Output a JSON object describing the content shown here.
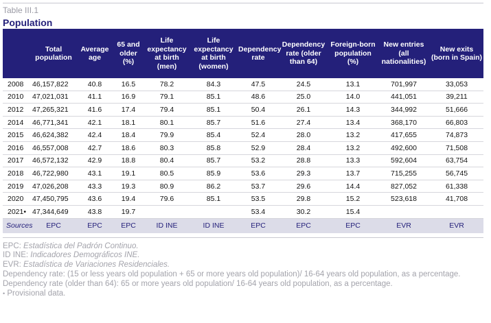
{
  "table": {
    "label": "Table III.1",
    "title": "Population",
    "headers": [
      "",
      "Total population",
      "Average age",
      "65 and older (%)",
      "Life expectancy at birth (men)",
      "Life expectancy at birth (women)",
      "Dependency rate",
      "Dependency rate (older than 64)",
      "Foreign-born population (%)",
      "New entries (all nationalities)",
      "New exits (born in Spain)"
    ],
    "rows": [
      [
        "2008",
        "46,157,822",
        "40.8",
        "16.5",
        "78.2",
        "84.3",
        "47.5",
        "24.5",
        "13.1",
        "701,997",
        "33,053"
      ],
      [
        "2010",
        "47,021,031",
        "41.1",
        "16.9",
        "79.1",
        "85.1",
        "48.6",
        "25.0",
        "14.0",
        "441,051",
        "39,211"
      ],
      [
        "2012",
        "47,265,321",
        "41.6",
        "17.4",
        "79.4",
        "85.1",
        "50.4",
        "26.1",
        "14.3",
        "344,992",
        "51,666"
      ],
      [
        "2014",
        "46,771,341",
        "42.1",
        "18.1",
        "80.1",
        "85.7",
        "51.6",
        "27.4",
        "13.4",
        "368,170",
        "66,803"
      ],
      [
        "2015",
        "46,624,382",
        "42.4",
        "18.4",
        "79.9",
        "85.4",
        "52.4",
        "28.0",
        "13.2",
        "417,655",
        "74,873"
      ],
      [
        "2016",
        "46,557,008",
        "42.7",
        "18.6",
        "80.3",
        "85.8",
        "52.9",
        "28.4",
        "13.2",
        "492,600",
        "71,508"
      ],
      [
        "2017",
        "46,572,132",
        "42.9",
        "18.8",
        "80.4",
        "85.7",
        "53.2",
        "28.8",
        "13.3",
        "592,604",
        "63,754"
      ],
      [
        "2018",
        "46,722,980",
        "43.1",
        "19.1",
        "80.5",
        "85.9",
        "53.6",
        "29.3",
        "13.7",
        "715,255",
        "56,745"
      ],
      [
        "2019",
        "47,026,208",
        "43.3",
        "19.3",
        "80.9",
        "86.2",
        "53.7",
        "29.6",
        "14.4",
        "827,052",
        "61,338"
      ],
      [
        "2020",
        "47,450,795",
        "43.6",
        "19.4",
        "79.6",
        "85.1",
        "53.5",
        "29.8",
        "15.2",
        "523,618",
        "41,708"
      ],
      [
        "2021•",
        "47,344,649",
        "43.8",
        "19.7",
        "",
        "",
        "53.4",
        "30.2",
        "15.4",
        "",
        ""
      ]
    ],
    "sources": [
      "Sources",
      "EPC",
      "EPC",
      "EPC",
      "ID INE",
      "ID INE",
      "EPC",
      "EPC",
      "EPC",
      "EVR",
      "EVR"
    ]
  },
  "notes": [
    {
      "abbr": "EPC:",
      "text": "Estadística del Padrón Continuo."
    },
    {
      "abbr": "ID INE:",
      "text": "Indicadores Demográficos INE."
    },
    {
      "abbr": "EVR:",
      "text": "Estadística de Variaciones Residenciales."
    }
  ],
  "definitions": [
    "Dependency rate: (15 or less years old population + 65 or more years old population)/ 16-64 years old population, as a percentage.",
    "Dependency rate (older than 64): 65 or more years old population/ 16-64 years old population, as a percentage."
  ],
  "provisional": {
    "symbol": "•",
    "text": "Provisional data."
  }
}
